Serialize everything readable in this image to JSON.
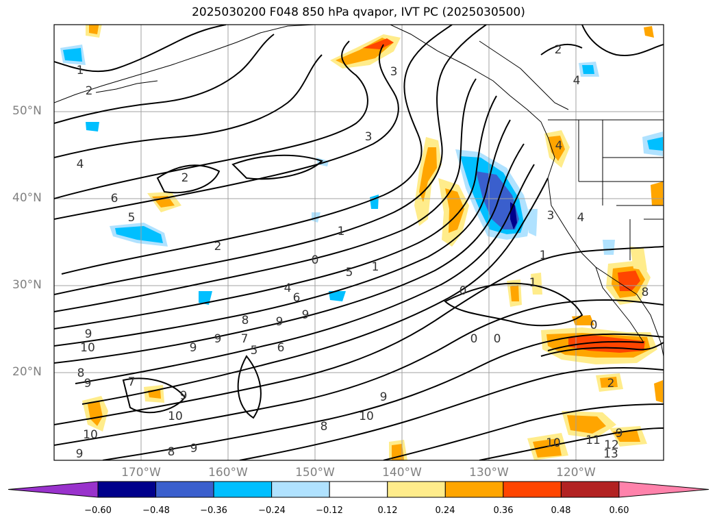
{
  "title": "2025030200 F048 850 hPa qvapor, IVT PC (2025030500)",
  "lat_labels": [
    "50°N",
    "40°N",
    "30°N",
    "20°N"
  ],
  "lon_labels": [
    "170°W",
    "160°W",
    "150°W",
    "140°W",
    "130°W",
    "120°W"
  ],
  "colorbar": {
    "ticks": [
      "−0.60",
      "−0.48",
      "−0.36",
      "−0.24",
      "−0.12",
      "0.12",
      "0.24",
      "0.36",
      "0.48",
      "0.60"
    ],
    "colors": [
      "#9932cc",
      "#00008b",
      "#3a5fcd",
      "#00bfff",
      "#b0e2ff",
      "#ffffff",
      "#ffec8b",
      "#ffa500",
      "#ff4500",
      "#b22222",
      "#ff82ab"
    ]
  },
  "shading_colors": {
    "neg_light": "#b0e2ff",
    "neg_mid": "#00bfff",
    "neg_strong": "#3a5fcd",
    "neg_max": "#00008b",
    "pos_light": "#ffec8b",
    "pos_mid": "#ffa500",
    "pos_strong": "#ff4500"
  },
  "contour_labels": [
    "1",
    "2",
    "3",
    "4",
    "6",
    "5",
    "2",
    "1",
    "0",
    "3",
    "5",
    "1",
    "4",
    "6",
    "8",
    "9",
    "9",
    "9",
    "9",
    "9",
    "10",
    "8",
    "9",
    "7",
    "5",
    "6",
    "7",
    "9",
    "10",
    "10",
    "9",
    "9",
    "10",
    "8",
    "9",
    "0",
    "0",
    "0",
    "4",
    "4",
    "1",
    "1",
    "8",
    "0",
    "2",
    "11",
    "12",
    "13",
    "10",
    "9",
    "3",
    "2",
    "2",
    "4",
    "8"
  ]
}
